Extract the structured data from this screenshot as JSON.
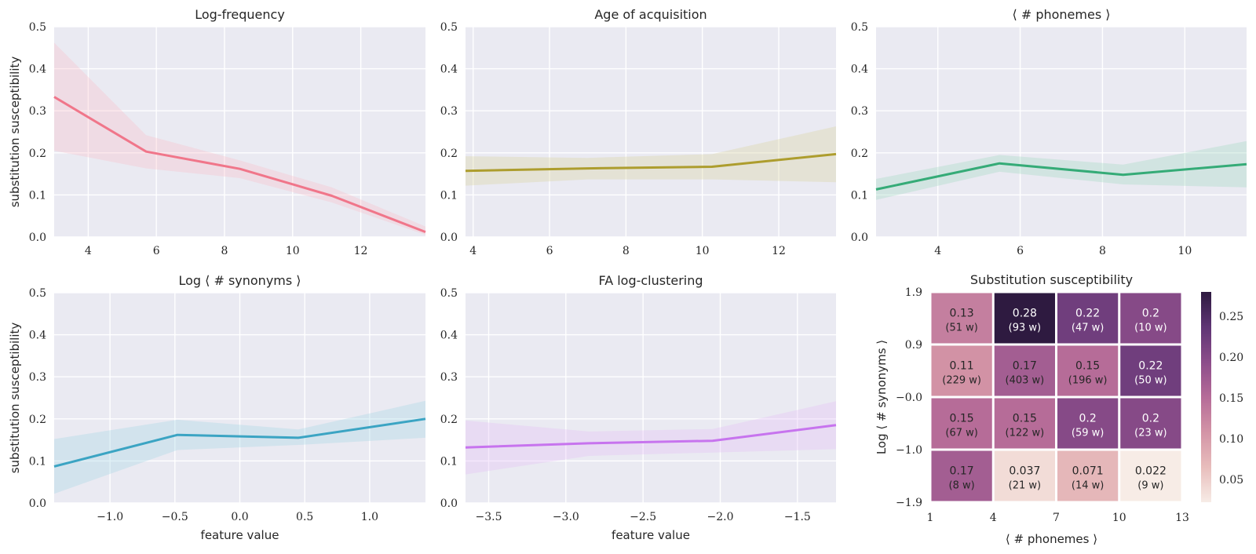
{
  "chart_data": [
    {
      "type": "line",
      "title": "Log-frequency",
      "xlabel": "",
      "ylabel": "substitution susceptibility",
      "color": "#f0768a",
      "xlim": [
        3.0,
        13.9
      ],
      "ylim": [
        0,
        0.5
      ],
      "xticks": [
        {
          "v": 4,
          "label": "4"
        },
        {
          "v": 6,
          "label": "6"
        },
        {
          "v": 8,
          "label": "8"
        },
        {
          "v": 10,
          "label": "10"
        },
        {
          "v": 12,
          "label": "12"
        }
      ],
      "yticks": [
        "0.0",
        "0.1",
        "0.2",
        "0.3",
        "0.4",
        "0.5"
      ],
      "x": [
        3.0,
        5.7,
        8.45,
        11.15,
        13.9
      ],
      "y": [
        0.333,
        0.203,
        0.162,
        0.098,
        0.012
      ],
      "ci_low": [
        0.205,
        0.163,
        0.14,
        0.082,
        0.005
      ],
      "ci_high": [
        0.462,
        0.242,
        0.182,
        0.118,
        0.025
      ]
    },
    {
      "type": "line",
      "title": "Age of acquisition",
      "xlabel": "",
      "ylabel": "",
      "color": "#ad9d2e",
      "xlim": [
        3.8,
        13.5
      ],
      "ylim": [
        0,
        0.5
      ],
      "xticks": [
        {
          "v": 4,
          "label": "4"
        },
        {
          "v": 6,
          "label": "6"
        },
        {
          "v": 8,
          "label": "8"
        },
        {
          "v": 10,
          "label": "10"
        },
        {
          "v": 12,
          "label": "12"
        }
      ],
      "yticks": [
        "0.0",
        "0.1",
        "0.2",
        "0.3",
        "0.4",
        "0.5"
      ],
      "x": [
        3.8,
        7.0,
        10.25,
        13.5
      ],
      "y": [
        0.157,
        0.163,
        0.167,
        0.197
      ],
      "ci_low": [
        0.122,
        0.137,
        0.137,
        0.13
      ],
      "ci_high": [
        0.192,
        0.188,
        0.197,
        0.263
      ]
    },
    {
      "type": "line",
      "title": "⟨ # phonemes ⟩",
      "xlabel": "",
      "ylabel": "",
      "color": "#35ab77",
      "xlim": [
        2.5,
        11.5
      ],
      "ylim": [
        0,
        0.5
      ],
      "xticks": [
        {
          "v": 4,
          "label": "4"
        },
        {
          "v": 6,
          "label": "6"
        },
        {
          "v": 8,
          "label": "8"
        },
        {
          "v": 10,
          "label": "10"
        }
      ],
      "yticks": [
        "0.0",
        "0.1",
        "0.2",
        "0.3",
        "0.4",
        "0.5"
      ],
      "x": [
        2.5,
        5.5,
        8.5,
        11.5
      ],
      "y": [
        0.113,
        0.175,
        0.148,
        0.173
      ],
      "ci_low": [
        0.088,
        0.155,
        0.125,
        0.118
      ],
      "ci_high": [
        0.138,
        0.195,
        0.172,
        0.228
      ]
    },
    {
      "type": "line",
      "title": "Log ⟨ # synonyms ⟩",
      "xlabel": "feature value",
      "ylabel": "substitution susceptibility",
      "color": "#3ba4c3",
      "xlim": [
        -1.43,
        1.43
      ],
      "ylim": [
        0,
        0.5
      ],
      "xticks": [
        {
          "v": -1.0,
          "label": "−1.0"
        },
        {
          "v": -0.5,
          "label": "−0.5"
        },
        {
          "v": 0.0,
          "label": "0.0"
        },
        {
          "v": 0.5,
          "label": "0.5"
        },
        {
          "v": 1.0,
          "label": "1.0"
        }
      ],
      "yticks": [
        "0.0",
        "0.1",
        "0.2",
        "0.3",
        "0.4",
        "0.5"
      ],
      "x": [
        -1.43,
        -0.48,
        0.45,
        1.43
      ],
      "y": [
        0.087,
        0.162,
        0.155,
        0.2
      ],
      "ci_low": [
        0.022,
        0.126,
        0.138,
        0.155
      ],
      "ci_high": [
        0.152,
        0.198,
        0.175,
        0.243
      ]
    },
    {
      "type": "line",
      "title": "FA log-clustering",
      "xlabel": "feature value",
      "ylabel": "",
      "color": "#c774ee",
      "xlim": [
        -3.65,
        -1.25
      ],
      "ylim": [
        0,
        0.5
      ],
      "xticks": [
        {
          "v": -3.5,
          "label": "−3.5"
        },
        {
          "v": -3.0,
          "label": "−3.0"
        },
        {
          "v": -2.5,
          "label": "−2.5"
        },
        {
          "v": -2.0,
          "label": "−2.0"
        },
        {
          "v": -1.5,
          "label": "−1.5"
        }
      ],
      "yticks": [
        "0.0",
        "0.1",
        "0.2",
        "0.3",
        "0.4",
        "0.5"
      ],
      "x": [
        -3.65,
        -2.85,
        -2.05,
        -1.25
      ],
      "y": [
        0.132,
        0.142,
        0.148,
        0.185
      ],
      "ci_low": [
        0.068,
        0.112,
        0.12,
        0.128
      ],
      "ci_high": [
        0.196,
        0.17,
        0.176,
        0.242
      ]
    },
    {
      "type": "heatmap",
      "title": "Substitution susceptibility",
      "xlabel": "⟨ # phonemes ⟩",
      "ylabel": "Log ⟨ # synonyms ⟩",
      "x_edges": [
        "1",
        "4",
        "7",
        "10",
        "13"
      ],
      "y_edges": [
        "1.9",
        "0.9",
        "−0.0",
        "−1.0",
        "−1.9"
      ],
      "cells": [
        [
          {
            "v": 0.13,
            "label": "0.13",
            "count": "(51 w)"
          },
          {
            "v": 0.28,
            "label": "0.28",
            "count": "(93 w)"
          },
          {
            "v": 0.22,
            "label": "0.22",
            "count": "(47 w)"
          },
          {
            "v": 0.2,
            "label": "0.2",
            "count": "(10 w)"
          }
        ],
        [
          {
            "v": 0.11,
            "label": "0.11",
            "count": "(229 w)"
          },
          {
            "v": 0.17,
            "label": "0.17",
            "count": "(403 w)"
          },
          {
            "v": 0.15,
            "label": "0.15",
            "count": "(196 w)"
          },
          {
            "v": 0.22,
            "label": "0.22",
            "count": "(50 w)"
          }
        ],
        [
          {
            "v": 0.15,
            "label": "0.15",
            "count": "(67 w)"
          },
          {
            "v": 0.15,
            "label": "0.15",
            "count": "(122 w)"
          },
          {
            "v": 0.2,
            "label": "0.2",
            "count": "(59 w)"
          },
          {
            "v": 0.2,
            "label": "0.2",
            "count": "(23 w)"
          }
        ],
        [
          {
            "v": 0.17,
            "label": "0.17",
            "count": "(8 w)"
          },
          {
            "v": 0.037,
            "label": "0.037",
            "count": "(21 w)"
          },
          {
            "v": 0.071,
            "label": "0.071",
            "count": "(14 w)"
          },
          {
            "v": 0.022,
            "label": "0.022",
            "count": "(9 w)"
          }
        ]
      ],
      "colorbar": {
        "vmin": 0.022,
        "vmax": 0.28,
        "ticks": [
          0.05,
          0.1,
          0.15,
          0.2,
          0.25
        ],
        "tick_labels": [
          "0.05",
          "0.10",
          "0.15",
          "0.20",
          "0.25"
        ]
      },
      "colormap": [
        "#f7ece6",
        "#e8bdbc",
        "#d394a6",
        "#b56b98",
        "#8c4d8a",
        "#5e3474",
        "#2e1a40"
      ]
    }
  ]
}
